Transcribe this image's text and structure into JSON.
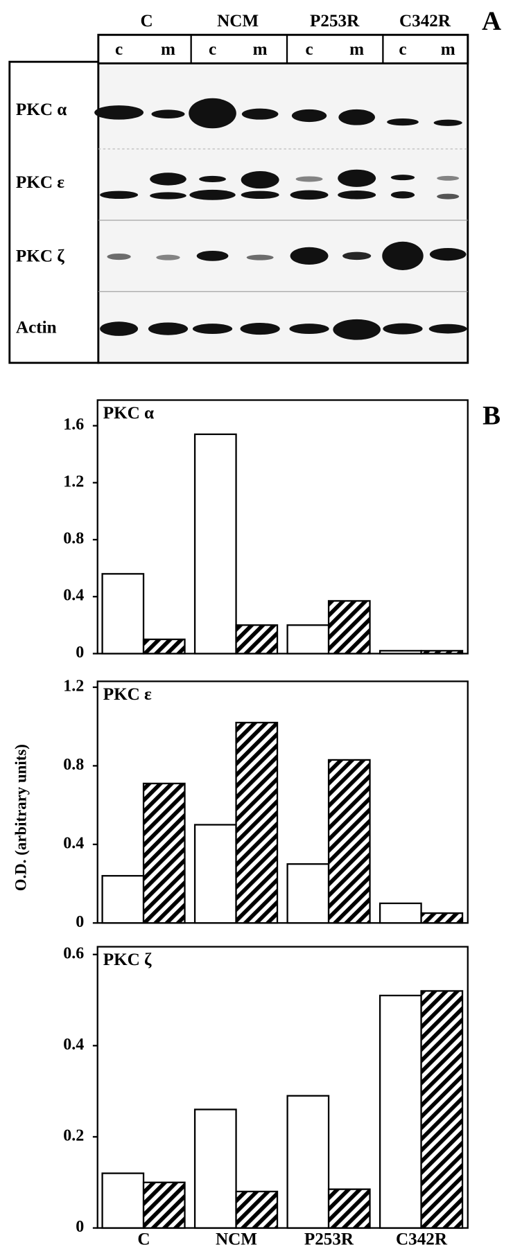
{
  "figure": {
    "panel_a_label": "A",
    "panel_b_label": "B",
    "ylabel": "O.D. (arbitrary units)"
  },
  "blot": {
    "groups": [
      "C",
      "NCM",
      "P253R",
      "C342R"
    ],
    "lanes": [
      "c",
      "m",
      "c",
      "m",
      "c",
      "m",
      "c",
      "m"
    ],
    "rows": [
      "PKC α",
      "PKC ε",
      "PKC ζ",
      "Actin"
    ]
  },
  "chart_data": [
    {
      "type": "bar",
      "title": "PKC α",
      "ylim": [
        0,
        1.78
      ],
      "yticks": [
        0,
        0.4,
        0.8,
        1.2,
        1.6
      ],
      "series": [
        {
          "color": "#ffffff",
          "hatch": false,
          "values": [
            0.56,
            1.54,
            0.2,
            0.02
          ]
        },
        {
          "color": "#000000",
          "hatch": true,
          "values": [
            0.1,
            0.2,
            0.37,
            0.02
          ]
        }
      ]
    },
    {
      "type": "bar",
      "title": "PKC ε",
      "ylim": [
        0,
        1.23
      ],
      "yticks": [
        0,
        0.4,
        0.8,
        1.2
      ],
      "series": [
        {
          "color": "#ffffff",
          "hatch": false,
          "values": [
            0.24,
            0.5,
            0.3,
            0.1
          ]
        },
        {
          "color": "#000000",
          "hatch": true,
          "values": [
            0.71,
            1.02,
            0.83,
            0.05
          ]
        }
      ]
    },
    {
      "type": "bar",
      "title": "PKC ζ",
      "ylim": [
        0,
        0.617
      ],
      "yticks": [
        0,
        0.2,
        0.4,
        0.6
      ],
      "categories": [
        "C",
        "NCM",
        "P253R",
        "C342R"
      ],
      "series": [
        {
          "color": "#ffffff",
          "hatch": false,
          "values": [
            0.12,
            0.26,
            0.29,
            0.51
          ]
        },
        {
          "color": "#000000",
          "hatch": true,
          "values": [
            0.1,
            0.08,
            0.085,
            0.52
          ]
        }
      ]
    }
  ]
}
